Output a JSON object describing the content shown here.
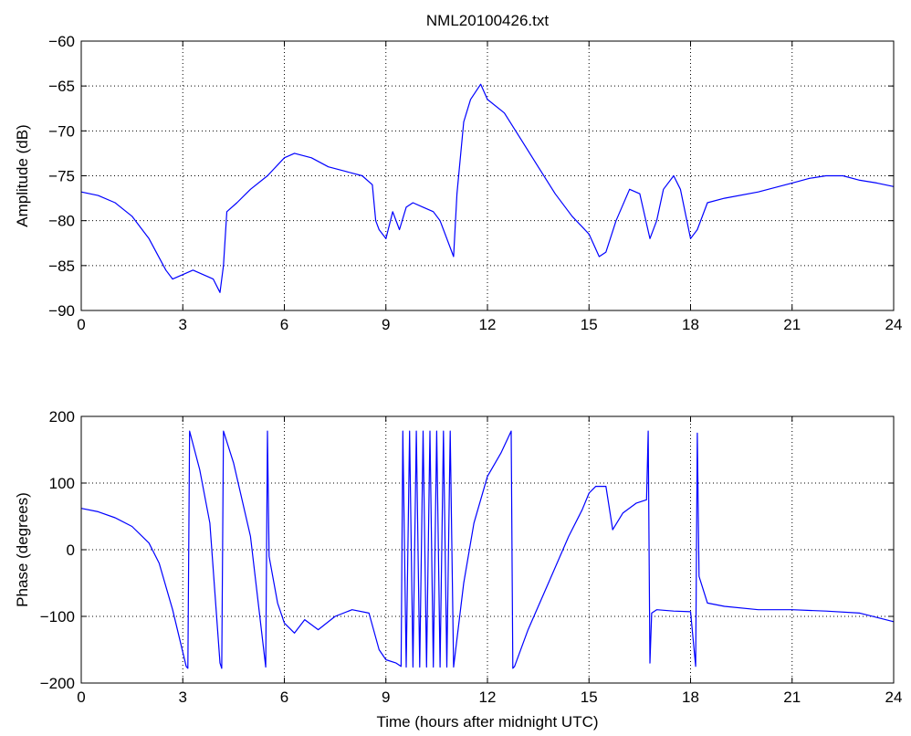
{
  "title": "NML20100426.txt",
  "chart_data": [
    {
      "type": "line",
      "ylabel": "Amplitude (dB)",
      "xlabel": "",
      "xlim": [
        0,
        24
      ],
      "ylim": [
        -90,
        -60
      ],
      "xticks": [
        0,
        3,
        6,
        9,
        12,
        15,
        18,
        21,
        24
      ],
      "yticks": [
        -90,
        -85,
        -80,
        -75,
        -70,
        -65,
        -60
      ],
      "grid": true,
      "line_color": "#0000ff",
      "series": [
        {
          "x": [
            0,
            0.5,
            1.0,
            1.5,
            2.0,
            2.5,
            2.7,
            3.0,
            3.3,
            3.6,
            3.9,
            4.1,
            4.2,
            4.3,
            4.6,
            5.0,
            5.5,
            6.0,
            6.3,
            6.8,
            7.3,
            7.8,
            8.3,
            8.6,
            8.7,
            8.8,
            9.0,
            9.2,
            9.4,
            9.6,
            9.8,
            10.1,
            10.4,
            10.6,
            10.8,
            11.0,
            11.1,
            11.3,
            11.5,
            11.8,
            12.0,
            12.5,
            13.0,
            13.5,
            14.0,
            14.5,
            15.0,
            15.3,
            15.5,
            15.8,
            16.2,
            16.5,
            16.8,
            17.0,
            17.2,
            17.5,
            17.7,
            18.0,
            18.2,
            18.5,
            19.0,
            20.0,
            21.0,
            21.5,
            22.0,
            22.5,
            23.0,
            23.5,
            24.0
          ],
          "y": [
            -76.8,
            -77.2,
            -78.0,
            -79.5,
            -82.0,
            -85.5,
            -86.5,
            -86.0,
            -85.5,
            -86.0,
            -86.5,
            -88.0,
            -85.0,
            -79.0,
            -78.0,
            -76.5,
            -75.0,
            -73.0,
            -72.5,
            -73.0,
            -74.0,
            -74.5,
            -75.0,
            -76.0,
            -80.0,
            -81.0,
            -82.0,
            -79.0,
            -81.0,
            -78.5,
            -78.0,
            -78.5,
            -79.0,
            -80.0,
            -82.0,
            -84.0,
            -77.0,
            -69.0,
            -66.5,
            -64.8,
            -66.5,
            -68.0,
            -71.0,
            -74.0,
            -77.0,
            -79.5,
            -81.5,
            -84.0,
            -83.5,
            -80.0,
            -76.5,
            -77.0,
            -82.0,
            -80.0,
            -76.5,
            -75.0,
            -76.5,
            -82.0,
            -81.0,
            -78.0,
            -77.5,
            -76.8,
            -75.8,
            -75.3,
            -75.0,
            -75.0,
            -75.5,
            -75.8,
            -76.2
          ]
        }
      ]
    },
    {
      "type": "line",
      "ylabel": "Phase (degrees)",
      "xlabel": "Time (hours after midnight UTC)",
      "xlim": [
        0,
        24
      ],
      "ylim": [
        -200,
        200
      ],
      "xticks": [
        0,
        3,
        6,
        9,
        12,
        15,
        18,
        21,
        24
      ],
      "yticks": [
        -200,
        -100,
        0,
        100,
        200
      ],
      "grid": true,
      "line_color": "#0000ff",
      "series": [
        {
          "x": [
            0,
            0.5,
            1.0,
            1.5,
            2.0,
            2.3,
            2.7,
            3.1,
            3.15,
            3.2,
            3.5,
            3.8,
            4.1,
            4.15,
            4.2,
            4.5,
            5.0,
            5.45,
            5.5,
            5.55,
            5.8,
            6.0,
            6.3,
            6.6,
            7.0,
            7.5,
            8.0,
            8.5,
            8.8,
            9.0,
            9.3,
            9.45,
            9.5,
            9.6,
            9.7,
            9.8,
            9.9,
            10.0,
            10.1,
            10.2,
            10.3,
            10.4,
            10.5,
            10.6,
            10.7,
            10.8,
            10.9,
            11.0,
            11.3,
            11.6,
            12.0,
            12.4,
            12.7,
            12.75,
            12.8,
            13.2,
            13.8,
            14.4,
            14.8,
            15.0,
            15.2,
            15.5,
            15.7,
            16.0,
            16.4,
            16.7,
            16.75,
            16.8,
            16.85,
            17.0,
            17.5,
            18.0,
            18.15,
            18.2,
            18.25,
            18.5,
            19.0,
            20.0,
            21.0,
            22.0,
            23.0,
            24.0
          ],
          "y": [
            62,
            57,
            48,
            35,
            10,
            -20,
            -90,
            -175,
            -178,
            178,
            120,
            40,
            -170,
            -178,
            178,
            130,
            20,
            -176,
            178,
            -10,
            -80,
            -110,
            -125,
            -105,
            -120,
            -100,
            -90,
            -95,
            -150,
            -165,
            -170,
            -175,
            178,
            -176,
            178,
            -176,
            178,
            -176,
            178,
            -176,
            178,
            -176,
            178,
            -176,
            178,
            -176,
            178,
            -176,
            -50,
            40,
            110,
            145,
            178,
            -178,
            -175,
            -120,
            -50,
            20,
            60,
            85,
            95,
            95,
            30,
            55,
            70,
            75,
            178,
            -170,
            -95,
            -90,
            -92,
            -93,
            -175,
            175,
            -40,
            -80,
            -85,
            -90,
            -90,
            -92,
            -95,
            -108
          ]
        }
      ]
    }
  ]
}
